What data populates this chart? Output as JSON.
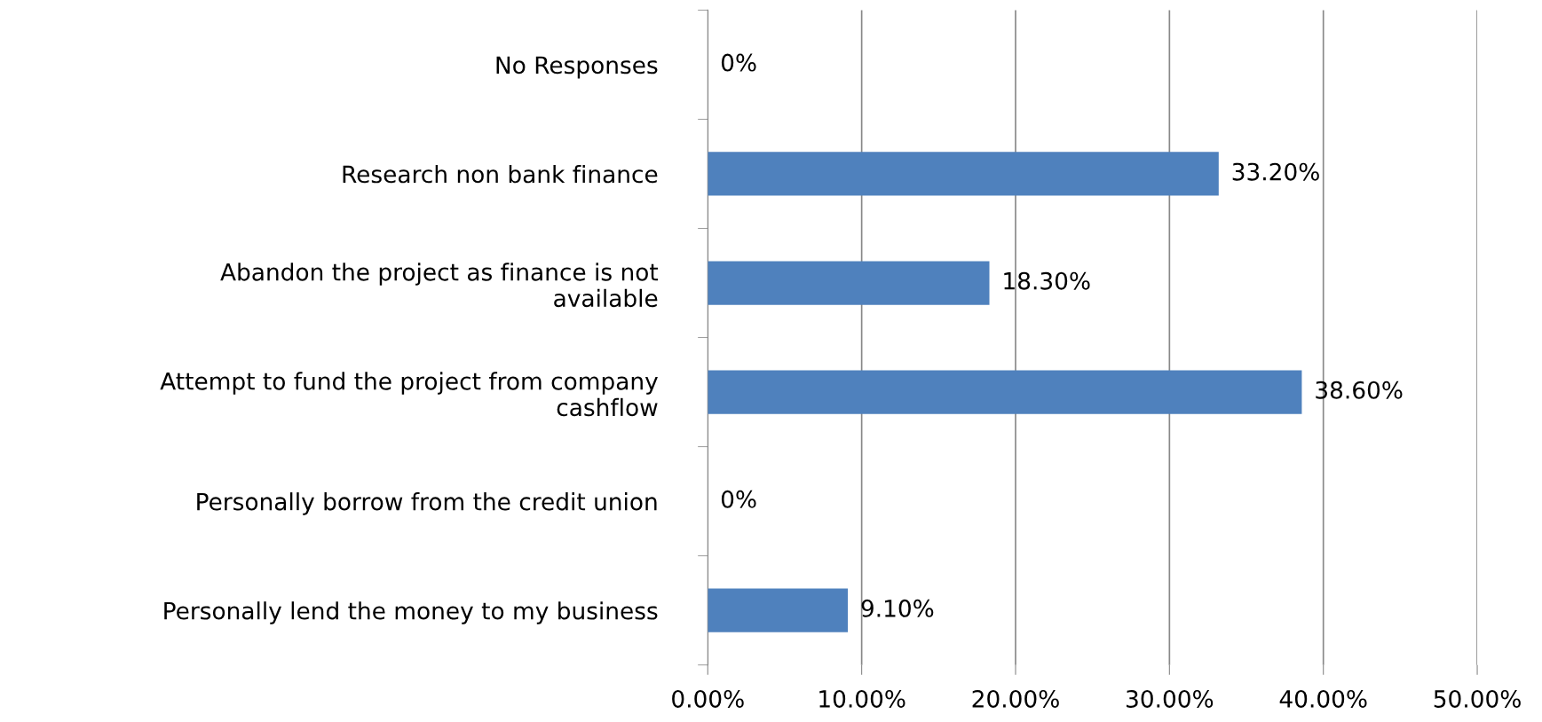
{
  "chart_data": {
    "type": "bar",
    "orientation": "horizontal",
    "categories": [
      "No Responses",
      "Research non bank finance",
      "Abandon the project as finance is not\navailable",
      "Attempt to fund the project from company\ncashflow",
      "Personally borrow from the credit union",
      "Personally lend the money to my business"
    ],
    "values": [
      0,
      33.2,
      18.3,
      38.6,
      0,
      9.1
    ],
    "value_labels": [
      "0%",
      "33.20%",
      "18.30%",
      "38.60%",
      "0%",
      "9.10%"
    ],
    "color": "#4f81bd",
    "xlim": [
      0,
      50
    ],
    "xticks": [
      {
        "value": 0,
        "label": "0.00%"
      },
      {
        "value": 10,
        "label": "10.00%"
      },
      {
        "value": 20,
        "label": "20.00%"
      },
      {
        "value": 30,
        "label": "30.00%"
      },
      {
        "value": 40,
        "label": "40.00%"
      },
      {
        "value": 50,
        "label": "50.00%"
      }
    ],
    "grid": "x",
    "legend": false
  }
}
